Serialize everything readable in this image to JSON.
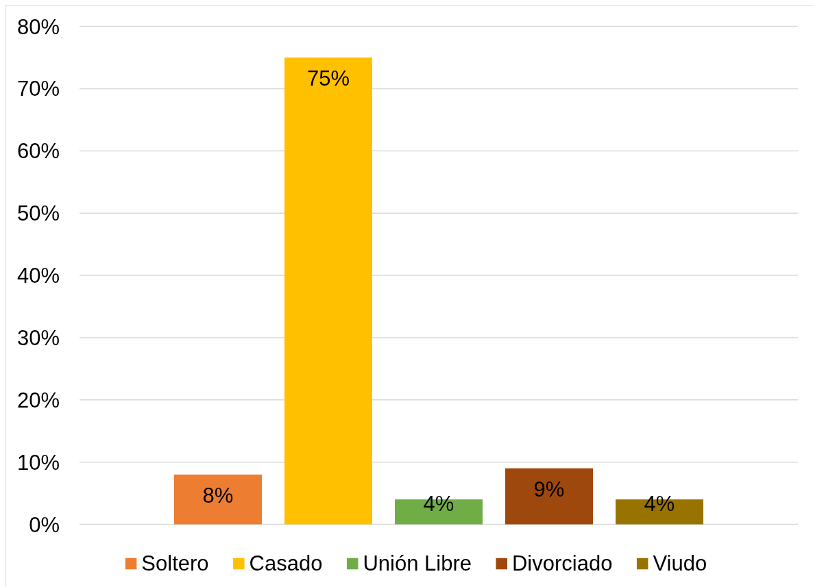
{
  "chart_data": {
    "type": "bar",
    "categories": [
      null
    ],
    "series": [
      {
        "name": "Soltero",
        "color": "#ed7d31",
        "values": [
          8
        ],
        "value_labels": [
          "8%"
        ]
      },
      {
        "name": "Casado",
        "color": "#ffc000",
        "values": [
          75
        ],
        "value_labels": [
          "75%"
        ]
      },
      {
        "name": "Unión Libre",
        "color": "#70ad47",
        "values": [
          4
        ],
        "value_labels": [
          "4%"
        ]
      },
      {
        "name": "Divorciado",
        "color": "#9e480e",
        "values": [
          9
        ],
        "value_labels": [
          "9%"
        ]
      },
      {
        "name": "Viudo",
        "color": "#997300",
        "values": [
          4
        ],
        "value_labels": [
          "4%"
        ]
      }
    ],
    "ylim": [
      0,
      80
    ],
    "yticks": [
      {
        "value": 0,
        "label": "0%"
      },
      {
        "value": 10,
        "label": "10%"
      },
      {
        "value": 20,
        "label": "20%"
      },
      {
        "value": 30,
        "label": "30%"
      },
      {
        "value": 40,
        "label": "40%"
      },
      {
        "value": 50,
        "label": "50%"
      },
      {
        "value": 60,
        "label": "60%"
      },
      {
        "value": 70,
        "label": "70%"
      },
      {
        "value": 80,
        "label": "80%"
      }
    ],
    "grid": "y",
    "legend": "bottom"
  }
}
